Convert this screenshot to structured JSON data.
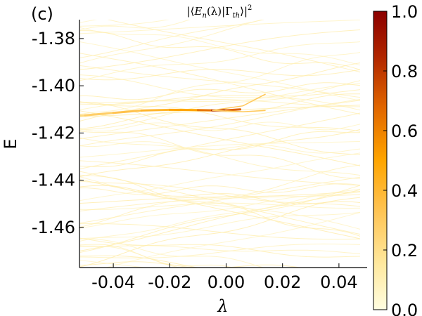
{
  "panel_label": "(c)",
  "chart_data": {
    "type": "heatmap",
    "title": "|⟨E_n(λ)|Γ_th⟩|²",
    "title_parts": {
      "open": "|⟨",
      "e": "E",
      "n_sub": "n",
      "mid": "(λ)|Γ",
      "th_sub": "th",
      "close": "⟩|",
      "sup": "2"
    },
    "xlabel": "λ",
    "ylabel": "E",
    "xlim": [
      -0.052,
      0.05
    ],
    "ylim": [
      -1.477,
      -1.372
    ],
    "x_ticks": [
      -0.04,
      -0.02,
      0.0,
      0.02,
      0.04
    ],
    "x_tick_labels": [
      "-0.04",
      "-0.02",
      "0.00",
      "0.02",
      "0.04"
    ],
    "y_ticks": [
      -1.38,
      -1.4,
      -1.42,
      -1.44,
      -1.46
    ],
    "y_tick_labels": [
      "-1.38",
      "-1.40",
      "-1.42",
      "-1.44",
      "-1.46"
    ],
    "grid": false,
    "colorbar": {
      "range": [
        0.0,
        1.0
      ],
      "ticks": [
        0.0,
        0.2,
        0.4,
        0.6,
        0.8,
        1.0
      ],
      "tick_labels": [
        "0.0",
        "0.2",
        "0.4",
        "0.6",
        "0.8",
        "1.0"
      ],
      "colormap": [
        "#fffde0",
        "#ffe9a0",
        "#ffc04a",
        "#ffa500",
        "#e06500",
        "#b02500",
        "#8b0000"
      ]
    },
    "main_feature": {
      "description_points_x": [
        -0.062,
        -0.05,
        -0.04,
        -0.03,
        -0.02,
        -0.01,
        -0.005,
        0.0,
        0.005
      ],
      "description_points_y": [
        -1.4135,
        -1.4125,
        -1.4115,
        -1.4105,
        -1.4102,
        -1.4103,
        -1.4104,
        -1.4104,
        -1.41
      ],
      "intensity": [
        0.2,
        0.25,
        0.3,
        0.35,
        0.45,
        0.55,
        0.7,
        0.95,
        0.4
      ]
    }
  }
}
